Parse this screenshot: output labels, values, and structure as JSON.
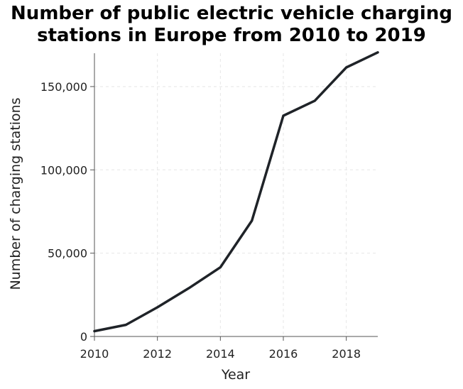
{
  "chart_data": {
    "type": "line",
    "title_lines": [
      "Number of public electric vehicle charging",
      "stations in Europe from 2010 to 2019"
    ],
    "xlabel": "Year",
    "ylabel": "Number of charging stations",
    "xlim": [
      2010,
      2019
    ],
    "ylim": [
      0,
      170000
    ],
    "xticks": [
      {
        "value": 2010,
        "label": "2010"
      },
      {
        "value": 2012,
        "label": "2012"
      },
      {
        "value": 2014,
        "label": "2014"
      },
      {
        "value": 2016,
        "label": "2016"
      },
      {
        "value": 2018,
        "label": "2018"
      }
    ],
    "yticks": [
      {
        "value": 0,
        "label": "0"
      },
      {
        "value": 50000,
        "label": "50,000"
      },
      {
        "value": 100000,
        "label": "100,000"
      },
      {
        "value": 150000,
        "label": "150,000"
      }
    ],
    "grid": true,
    "series": [
      {
        "x": [
          2010,
          2011,
          2012,
          2013,
          2014,
          2015,
          2016,
          2017,
          2018,
          2019
        ],
        "y": [
          3200,
          7000,
          17500,
          29000,
          41500,
          69500,
          132500,
          141500,
          161500,
          170500
        ]
      }
    ],
    "line_color": "#1f2328",
    "grid_color": "#e6e6e6",
    "axis_color": "#555555"
  }
}
